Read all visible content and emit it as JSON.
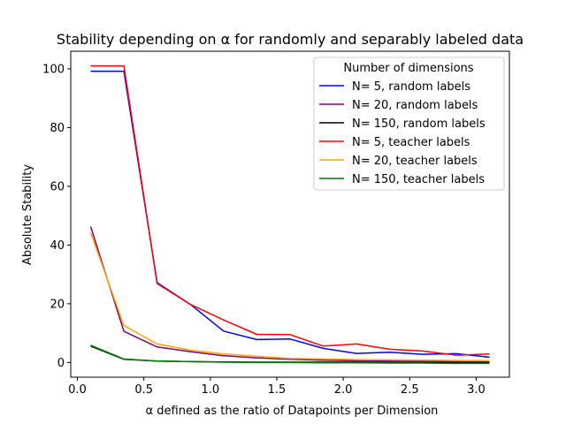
{
  "chart_data": {
    "type": "line",
    "title": "Stability depending on α for randomly and separably labeled data",
    "xlabel": "α defined as the ratio of Datapoints per Dimension",
    "ylabel": "Absolute Stability",
    "xlim": [
      -0.05,
      3.25
    ],
    "ylim": [
      -5,
      106
    ],
    "xticks": [
      "0.0",
      "0.5",
      "1.0",
      "1.5",
      "2.0",
      "2.5",
      "3.0"
    ],
    "yticks": [
      "0",
      "20",
      "40",
      "60",
      "80",
      "100"
    ],
    "grid": false,
    "legend": {
      "title": "Number of dimensions",
      "placement": "top-right"
    },
    "x": [
      0.1,
      0.35,
      0.6,
      0.85,
      1.1,
      1.35,
      1.6,
      1.85,
      2.1,
      2.35,
      2.6,
      2.85,
      3.1
    ],
    "series": [
      {
        "name": "N= 5, random labels",
        "color": "#0000ff",
        "values": [
          99.2,
          99.2,
          27.2,
          19.8,
          10.7,
          7.8,
          8.0,
          4.8,
          3.1,
          3.5,
          2.8,
          3.0,
          1.8
        ]
      },
      {
        "name": "N= 20, random labels",
        "color": "#800080",
        "values": [
          46.3,
          10.6,
          5.3,
          3.7,
          2.3,
          1.6,
          1.1,
          0.8,
          0.6,
          0.5,
          0.4,
          0.3,
          0.3
        ]
      },
      {
        "name": "N= 150, random labels",
        "color": "#000000",
        "values": [
          5.6,
          1.1,
          0.5,
          0.3,
          0.2,
          0.1,
          0.1,
          0.1,
          0.1,
          0.0,
          0.0,
          0.0,
          0.0
        ]
      },
      {
        "name": "N= 5, teacher labels",
        "color": "#ff0000",
        "values": [
          101.0,
          101.0,
          26.9,
          19.8,
          14.5,
          9.6,
          9.5,
          5.6,
          6.3,
          4.5,
          3.9,
          2.5,
          2.9
        ]
      },
      {
        "name": "N= 20, teacher labels",
        "color": "#ffa500",
        "values": [
          44.2,
          12.6,
          6.3,
          4.2,
          2.9,
          2.1,
          1.4,
          1.2,
          1.0,
          0.9,
          0.8,
          0.7,
          0.6
        ]
      },
      {
        "name": "N= 150, teacher labels",
        "color": "#008000",
        "values": [
          5.9,
          1.2,
          0.5,
          0.3,
          0.1,
          0.0,
          0.0,
          -0.1,
          -0.1,
          -0.2,
          -0.2,
          -0.3,
          -0.3
        ]
      }
    ]
  }
}
